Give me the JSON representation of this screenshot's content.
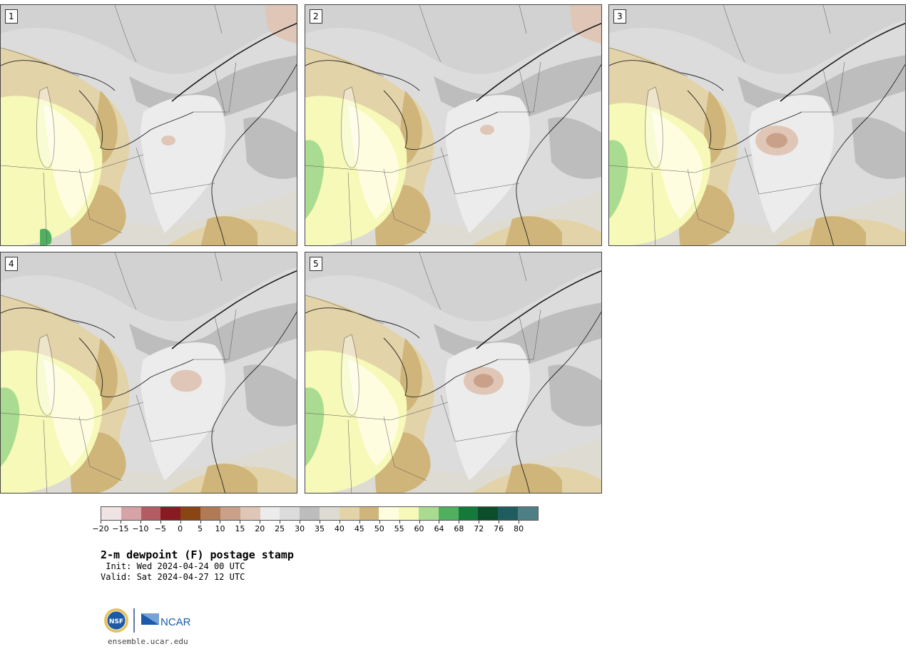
{
  "panels": [
    {
      "label": "1",
      "variant": 1
    },
    {
      "label": "2",
      "variant": 2
    },
    {
      "label": "3",
      "variant": 3
    },
    {
      "label": "4",
      "variant": 4
    },
    {
      "label": "5",
      "variant": 5
    }
  ],
  "colorbar": {
    "colors": [
      "#efe3e3",
      "#d6a3a6",
      "#b35d63",
      "#8a1a22",
      "#8b4513",
      "#b07a55",
      "#c9a088",
      "#e0c6b6",
      "#ececec",
      "#dcdcdc",
      "#bdbdbd",
      "#dedcd2",
      "#e3d3a9",
      "#cfb57a",
      "#fffde0",
      "#f6f9b8",
      "#a9dc90",
      "#4fb060",
      "#137a3a",
      "#0c4d2a",
      "#1f5c5f",
      "#4e7f85"
    ],
    "tick_labels": [
      "−20",
      "−15",
      "−10",
      "−5",
      "0",
      "5",
      "10",
      "15",
      "20",
      "25",
      "30",
      "35",
      "40",
      "45",
      "50",
      "55",
      "60",
      "64",
      "68",
      "72",
      "76",
      "80"
    ]
  },
  "title": "2-m dewpoint (F) postage stamp",
  "init": " Init: Wed 2024-04-24 00 UTC",
  "valid": "Valid: Sat 2024-04-27 12 UTC",
  "logo": {
    "nsf_text": "NSF",
    "ncar_text": "NCAR"
  },
  "website": "ensemble.ucar.edu"
}
